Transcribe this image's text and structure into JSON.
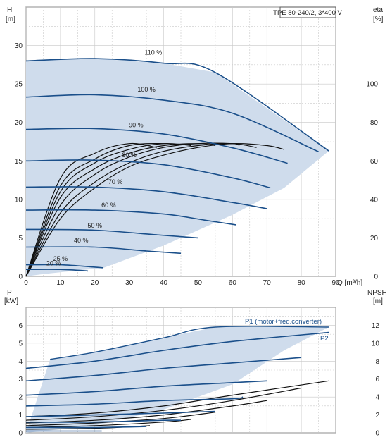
{
  "chart_data": [
    {
      "type": "line",
      "title": "TPE 80-240/2, 3*400 V",
      "ylabel": "H",
      "yunit": "[m]",
      "y2label": "eta",
      "y2unit": "[%]",
      "xlabel": "Q [m³/h]",
      "xlim": [
        0,
        90
      ],
      "ylim": [
        0,
        35
      ],
      "y2lim": [
        0,
        140
      ],
      "xticks": [
        "0",
        "10",
        "20",
        "30",
        "40",
        "50",
        "60",
        "70",
        "80",
        "90"
      ],
      "yticks": [
        "0",
        "5",
        "10",
        "15",
        "20",
        "25",
        "30"
      ],
      "y2ticks": [
        "0",
        "20",
        "40",
        "60",
        "80",
        "100"
      ],
      "grid": true,
      "colors": {
        "curve": "#1a4f8a",
        "area": "#cfdcec",
        "eta": "#111111",
        "grid": "#c8c8c8"
      },
      "series": [
        {
          "name": "110 %",
          "label_at": [
            37,
            28.8
          ],
          "x": [
            0,
            20,
            40,
            55,
            88
          ],
          "y": [
            28.0,
            28.3,
            27.7,
            26.5,
            16.3
          ]
        },
        {
          "name": "100 %",
          "label_at": [
            35,
            24.0
          ],
          "x": [
            0,
            20,
            40,
            60,
            85
          ],
          "y": [
            23.3,
            23.6,
            22.9,
            21.2,
            16.2
          ]
        },
        {
          "name": "90 %",
          "label_at": [
            32,
            19.4
          ],
          "x": [
            0,
            20,
            40,
            60,
            76
          ],
          "y": [
            19.1,
            19.2,
            18.5,
            16.7,
            14.7
          ]
        },
        {
          "name": "80 %",
          "label_at": [
            30,
            15.5
          ],
          "x": [
            0,
            20,
            40,
            60,
            71
          ],
          "y": [
            15.0,
            15.1,
            14.5,
            12.8,
            11.5
          ]
        },
        {
          "name": "70 %",
          "label_at": [
            26,
            12.0
          ],
          "x": [
            0,
            20,
            40,
            60,
            70
          ],
          "y": [
            11.6,
            11.6,
            11.0,
            9.6,
            8.8
          ]
        },
        {
          "name": "60 %",
          "label_at": [
            24,
            9.0
          ],
          "x": [
            0,
            20,
            40,
            52,
            61
          ],
          "y": [
            8.6,
            8.6,
            8.1,
            7.3,
            6.7
          ]
        },
        {
          "name": "50 %",
          "label_at": [
            20,
            6.3
          ],
          "x": [
            0,
            20,
            38,
            50
          ],
          "y": [
            6.1,
            6.0,
            5.4,
            5.0
          ]
        },
        {
          "name": "40 %",
          "label_at": [
            16,
            4.4
          ],
          "x": [
            0,
            20,
            35,
            45
          ],
          "y": [
            3.8,
            3.8,
            3.3,
            3.0
          ]
        },
        {
          "name": "25 %",
          "label_at": [
            10,
            2.0
          ],
          "x": [
            0,
            10,
            20,
            22.5
          ],
          "y": [
            1.5,
            1.5,
            1.2,
            1.1
          ]
        },
        {
          "name": "20 %",
          "label_at": [
            8,
            1.4
          ],
          "x": [
            0,
            10,
            18
          ],
          "y": [
            0.9,
            0.9,
            0.7
          ]
        }
      ],
      "eta_curves": [
        {
          "x": [
            0,
            10,
            20,
            30,
            40,
            50,
            60,
            70,
            75
          ],
          "eta": [
            0,
            30,
            46,
            57,
            63,
            67,
            69,
            68,
            66
          ]
        },
        {
          "x": [
            0,
            10,
            20,
            30,
            40,
            50,
            60,
            67
          ],
          "eta": [
            0,
            33,
            49,
            59,
            65,
            68,
            69,
            67
          ]
        },
        {
          "x": [
            0,
            10,
            20,
            30,
            40,
            50,
            60,
            62
          ],
          "eta": [
            0,
            37,
            53,
            62,
            67,
            69,
            69,
            68
          ]
        },
        {
          "x": [
            0,
            10,
            20,
            30,
            40,
            50,
            55
          ],
          "eta": [
            0,
            41,
            56,
            64,
            68,
            69,
            68
          ]
        },
        {
          "x": [
            0,
            10,
            20,
            30,
            40,
            48
          ],
          "eta": [
            0,
            44,
            59,
            66,
            69,
            68
          ]
        },
        {
          "x": [
            0,
            10,
            20,
            30,
            40,
            44
          ],
          "eta": [
            0,
            47,
            61,
            68,
            69,
            68
          ]
        },
        {
          "x": [
            0,
            10,
            20,
            30,
            38
          ],
          "eta": [
            0,
            51,
            64,
            69,
            67
          ]
        }
      ],
      "envelope": {
        "x": [
          0,
          20,
          40,
          55,
          88,
          75,
          60,
          40,
          22.5,
          5,
          0
        ],
        "y": [
          28.0,
          28.3,
          27.7,
          26.5,
          16.3,
          11.5,
          8.0,
          4.0,
          1.1,
          0.3,
          0
        ]
      }
    },
    {
      "type": "line",
      "ylabel": "P",
      "yunit": "[kW]",
      "y2label": "NPSH",
      "y2unit": "[m]",
      "xlim": [
        0,
        90
      ],
      "ylim": [
        0,
        7
      ],
      "y2lim": [
        0,
        14
      ],
      "yticks": [
        "0",
        "1",
        "2",
        "3",
        "4",
        "5",
        "6"
      ],
      "y2ticks": [
        "0",
        "2",
        "4",
        "6",
        "8",
        "10",
        "12"
      ],
      "grid": true,
      "annotations": [
        "P1 (motor+freq.converter)",
        "P2"
      ],
      "series": [
        {
          "name": "P1 (motor+freq.converter)",
          "x": [
            7,
            20,
            40,
            55,
            88
          ],
          "y": [
            4.1,
            4.5,
            5.3,
            5.9,
            5.9
          ]
        },
        {
          "name": "P2",
          "x": [
            0,
            20,
            40,
            60,
            88
          ],
          "y": [
            3.6,
            4.0,
            4.6,
            5.1,
            5.6
          ]
        },
        {
          "x": [
            0,
            20,
            40,
            60,
            80
          ],
          "y": [
            2.9,
            3.2,
            3.6,
            3.9,
            4.2
          ]
        },
        {
          "x": [
            0,
            20,
            40,
            60,
            70
          ],
          "y": [
            2.1,
            2.3,
            2.6,
            2.8,
            2.9
          ]
        },
        {
          "x": [
            0,
            20,
            40,
            60,
            63
          ],
          "y": [
            1.5,
            1.6,
            1.8,
            1.9,
            2.0
          ]
        },
        {
          "x": [
            0,
            20,
            40,
            55
          ],
          "y": [
            0.9,
            1.0,
            1.1,
            1.2
          ]
        },
        {
          "x": [
            0,
            20,
            40,
            45
          ],
          "y": [
            0.6,
            0.6,
            0.7,
            0.7
          ]
        },
        {
          "x": [
            0,
            20,
            35
          ],
          "y": [
            0.3,
            0.3,
            0.35
          ]
        },
        {
          "x": [
            0,
            15,
            22
          ],
          "y": [
            0.1,
            0.1,
            0.1
          ]
        }
      ],
      "npsh_curves": [
        {
          "x": [
            0,
            20,
            40,
            60,
            88
          ],
          "npsh": [
            1.8,
            2.2,
            3.0,
            4.2,
            5.8
          ]
        },
        {
          "x": [
            0,
            20,
            40,
            60,
            80
          ],
          "npsh": [
            1.4,
            1.8,
            2.5,
            3.6,
            5.0
          ]
        },
        {
          "x": [
            0,
            20,
            40,
            60,
            70
          ],
          "npsh": [
            1.1,
            1.4,
            2.0,
            3.0,
            3.6
          ]
        },
        {
          "x": [
            0,
            20,
            40,
            55
          ],
          "npsh": [
            0.8,
            1.1,
            1.6,
            2.3
          ]
        },
        {
          "x": [
            0,
            20,
            40,
            48
          ],
          "npsh": [
            0.6,
            0.8,
            1.2,
            1.5
          ]
        },
        {
          "x": [
            0,
            20,
            36
          ],
          "npsh": [
            0.4,
            0.5,
            0.8
          ]
        }
      ],
      "envelope": {
        "x": [
          7,
          20,
          40,
          55,
          88,
          75,
          60,
          40,
          20,
          5,
          0
        ],
        "y": [
          4.1,
          4.5,
          5.3,
          5.9,
          5.9,
          4.6,
          2.7,
          1.3,
          0.4,
          0.1,
          0
        ]
      }
    }
  ]
}
